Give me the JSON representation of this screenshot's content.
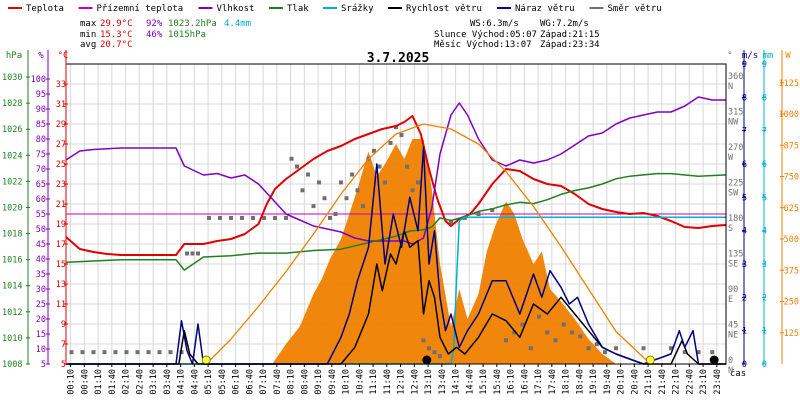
{
  "colors": {
    "temperature": "#e00000",
    "apparent_temperature": "#c000c0",
    "humidity": "#8000c0",
    "pressure": "#208020",
    "rain": "#00b0d0",
    "wind_speed": "#000000",
    "wind_gust": "#000080",
    "wind_direction": "#707070",
    "solar": "#f08000",
    "sun_curve": "#f08000",
    "grid": "#d8d8d8"
  },
  "legend": [
    {
      "label": "Teplota",
      "color": "#e00000"
    },
    {
      "label": "Přízemní teplota",
      "color": "#c000c0"
    },
    {
      "label": "Vlhkost",
      "color": "#8000c0"
    },
    {
      "label": "Tlak",
      "color": "#208020"
    },
    {
      "label": "Srážky",
      "color": "#00b0d0"
    },
    {
      "label": "Rychlost větru",
      "color": "#000000"
    },
    {
      "label": "Náraz větru",
      "color": "#000080"
    },
    {
      "label": "Směr větru",
      "color": "#707070"
    }
  ],
  "stats": {
    "max_label": "max",
    "max_temp": "29.9°C",
    "max_hum": "92%",
    "max_press": "1023.2hPa",
    "rain_total": "4.4mm",
    "min_label": "min",
    "min_temp": "15.3°C",
    "min_hum": "46%",
    "min_press": "1015hPa",
    "avg_label": "avg",
    "avg_temp": "20.7°C"
  },
  "wind_info": {
    "ws": "WS:6.3m/s",
    "wg": "WG:7.2m/s"
  },
  "sun_info": {
    "sunrise": "Slunce Východ:05:07",
    "sunset": "Západ:21:15"
  },
  "moon_info": {
    "moonrise": "Měsíc  Východ:13:07",
    "moonset": "Západ:23:34"
  },
  "chart_data": {
    "type": "line",
    "title": "3.7.2025",
    "xlabel": "čas",
    "x_ticks": [
      "00:10",
      "00:40",
      "01:10",
      "01:40",
      "02:10",
      "02:40",
      "03:10",
      "03:40",
      "04:10",
      "04:40",
      "05:10",
      "05:40",
      "06:10",
      "06:40",
      "07:10",
      "07:40",
      "08:10",
      "08:40",
      "09:10",
      "09:40",
      "10:10",
      "10:40",
      "11:10",
      "11:40",
      "12:10",
      "12:40",
      "13:10",
      "13:40",
      "14:10",
      "14:40",
      "15:10",
      "15:40",
      "16:10",
      "16:40",
      "17:10",
      "17:40",
      "18:10",
      "18:40",
      "19:10",
      "19:40",
      "20:10",
      "20:40",
      "21:10",
      "21:40",
      "22:10",
      "22:40",
      "23:10",
      "23:40"
    ],
    "axes": {
      "pressure": {
        "unit": "hPa",
        "ylim": [
          1008,
          1031
        ],
        "ticks": [
          "1030",
          "1028",
          "1026",
          "1024",
          "1022",
          "1020",
          "1018",
          "1016",
          "1014",
          "1012",
          "1010",
          "1008"
        ]
      },
      "humidity": {
        "unit": "%",
        "ylim": [
          5,
          105
        ],
        "ticks": [
          "100",
          "95",
          "90",
          "85",
          "80",
          "75",
          "70",
          "65",
          "60",
          "55",
          "50",
          "45",
          "40",
          "35",
          "30",
          "25",
          "20",
          "15",
          "10",
          "5"
        ]
      },
      "temperature": {
        "unit": "°C",
        "ylim": [
          5,
          35
        ],
        "ticks": [
          "33",
          "31",
          "29",
          "27",
          "25",
          "23",
          "21",
          "19",
          "17",
          "15",
          "13",
          "11",
          "9",
          "7",
          "5"
        ]
      },
      "wind_direction": {
        "unit": "°",
        "ylim": [
          0,
          380
        ],
        "ticks": [
          {
            "deg": "360",
            "dir": "N"
          },
          {
            "deg": "315",
            "dir": "NW"
          },
          {
            "deg": "270",
            "dir": "W"
          },
          {
            "deg": "225",
            "dir": "SW"
          },
          {
            "deg": "180",
            "dir": "S"
          },
          {
            "deg": "135",
            "dir": "SE"
          },
          {
            "deg": "90",
            "dir": "E"
          },
          {
            "deg": "45",
            "dir": "NE"
          },
          {
            "deg": "0",
            "dir": "N"
          }
        ]
      },
      "wind_speed": {
        "unit": "m/s",
        "ylim": [
          0,
          9
        ],
        "ticks": [
          "9",
          "8",
          "7",
          "6",
          "5",
          "4",
          "3",
          "2",
          "1",
          "0"
        ]
      },
      "rain": {
        "unit": "mm",
        "ylim": [
          0,
          9
        ],
        "ticks": [
          "9",
          "8",
          "7",
          "6",
          "5",
          "4",
          "3",
          "2",
          "1",
          "0"
        ]
      },
      "solar": {
        "unit": "W",
        "ylim": [
          0,
          1200
        ],
        "ticks": [
          "1125",
          "1000",
          "875",
          "750",
          "625",
          "500",
          "375",
          "250",
          "125"
        ]
      }
    },
    "reference_line": {
      "axis": "temperature",
      "value": 20,
      "color": "#c000c0"
    },
    "series": [
      {
        "name": "Teplota",
        "axis": "temperature",
        "color": "#e00000",
        "x": [
          0,
          0.5,
          1,
          1.5,
          2,
          3,
          4,
          4.3,
          5,
          5.5,
          6,
          6.5,
          7,
          7.3,
          7.6,
          8,
          8.5,
          9,
          9.5,
          10,
          10.5,
          11,
          11.5,
          12,
          12.3,
          12.6,
          12.9,
          13.2,
          13.5,
          13.8,
          14,
          14.3,
          14.7,
          15,
          15.5,
          16,
          16.5,
          17,
          17.5,
          18,
          18.5,
          19,
          19.5,
          20,
          20.5,
          21,
          21.5,
          22,
          22.5,
          23,
          23.5,
          24
        ],
        "values": [
          17.7,
          16.5,
          16.2,
          16.0,
          15.9,
          15.9,
          15.9,
          17.0,
          17.0,
          17.3,
          17.5,
          18.0,
          19.0,
          21.0,
          22.5,
          23.5,
          24.5,
          25.5,
          26.3,
          26.8,
          27.5,
          28.0,
          28.5,
          28.8,
          29.2,
          29.8,
          28.0,
          24.5,
          21.5,
          19.3,
          18.8,
          19.5,
          20.0,
          21.0,
          23.0,
          24.5,
          24.3,
          23.5,
          23.0,
          22.8,
          22.0,
          21.0,
          20.5,
          20.2,
          20.0,
          20.1,
          19.8,
          19.3,
          18.7,
          18.6,
          18.8,
          18.9
        ]
      },
      {
        "name": "Vlhkost",
        "axis": "humidity",
        "color": "#8000c0",
        "x": [
          0,
          0.5,
          1,
          2,
          3,
          4,
          4.3,
          5,
          5.5,
          6,
          6.5,
          7,
          7.5,
          8,
          8.5,
          9,
          9.5,
          10,
          10.5,
          11,
          11.5,
          12,
          12.3,
          12.6,
          13,
          13.3,
          13.6,
          14,
          14.3,
          14.6,
          15,
          15.5,
          16,
          16.5,
          17,
          17.5,
          18,
          18.5,
          19,
          19.5,
          20,
          20.5,
          21,
          21.5,
          22,
          22.5,
          23,
          23.5,
          24
        ],
        "values": [
          73,
          76,
          76.5,
          77,
          77,
          77,
          71,
          68,
          68.5,
          67,
          68,
          65,
          60,
          55,
          53,
          51,
          50,
          49,
          47,
          46,
          46,
          46,
          46,
          45,
          47,
          57,
          75,
          88,
          92,
          88,
          80,
          73,
          71,
          73,
          72,
          73,
          75,
          78,
          81,
          82,
          85,
          87,
          88,
          89,
          89,
          91,
          94,
          93,
          93
        ]
      },
      {
        "name": "Tlak",
        "axis": "pressure",
        "color": "#208020",
        "x": [
          0,
          1,
          2,
          3,
          4,
          4.3,
          5,
          6,
          7,
          8,
          9,
          10,
          11,
          12,
          12.5,
          13,
          13.3,
          13.6,
          14,
          14.5,
          15,
          15.5,
          16,
          16.5,
          17,
          17.5,
          18,
          18.5,
          19,
          19.5,
          20,
          20.5,
          21,
          21.5,
          22,
          23,
          24
        ],
        "values": [
          1015.8,
          1015.9,
          1016.0,
          1016.0,
          1016.0,
          1015.2,
          1016.2,
          1016.3,
          1016.5,
          1016.5,
          1016.7,
          1016.8,
          1017.3,
          1017.8,
          1018.2,
          1018.3,
          1018.5,
          1019.2,
          1019.0,
          1019.3,
          1019.7,
          1019.9,
          1020.2,
          1020.4,
          1020.3,
          1020.6,
          1021.0,
          1021.3,
          1021.5,
          1021.8,
          1022.2,
          1022.4,
          1022.5,
          1022.6,
          1022.6,
          1022.4,
          1022.5
        ]
      },
      {
        "name": "Srážky",
        "axis": "rain",
        "color": "#00b0d0",
        "x": [
          0,
          13.9,
          14.0,
          14.1,
          14.2,
          14.3,
          14.5,
          14.8,
          15,
          17,
          20,
          22,
          24
        ],
        "values": [
          0,
          0,
          0,
          0.5,
          2.5,
          4.3,
          4.4,
          4.4,
          4.4,
          4.4,
          4.4,
          4.4,
          4.4
        ]
      },
      {
        "name": "Rychlost větru",
        "axis": "wind_speed",
        "color": "#000000",
        "x": [
          0,
          4.1,
          4.3,
          4.5,
          4.8,
          5,
          8,
          10,
          10.5,
          11,
          11.3,
          11.5,
          11.8,
          12,
          12.3,
          12.5,
          12.8,
          13,
          13.2,
          13.4,
          13.6,
          13.9,
          14.2,
          14.5,
          15,
          15.5,
          16,
          16.5,
          17,
          17.5,
          18,
          18.5,
          19,
          19.5,
          20,
          21,
          22,
          22.4,
          22.6,
          23,
          24
        ],
        "values": [
          0,
          0,
          1.0,
          0.3,
          0,
          0,
          0,
          0,
          0.5,
          1.5,
          3.0,
          2.2,
          3.3,
          3.0,
          4.0,
          3.5,
          3.7,
          1.5,
          2.5,
          2.0,
          0.8,
          0.3,
          0.5,
          0.3,
          0.8,
          1.5,
          1.3,
          0.8,
          1.8,
          1.5,
          2.0,
          1.5,
          1.0,
          0.5,
          0.3,
          0,
          0,
          0.7,
          0.3,
          0,
          0
        ]
      },
      {
        "name": "Náraz větru",
        "axis": "wind_speed",
        "color": "#000080",
        "x": [
          0,
          4.0,
          4.2,
          4.4,
          4.6,
          4.8,
          5,
          8,
          9.5,
          10,
          10.3,
          10.6,
          11,
          11.3,
          11.6,
          11.9,
          12.2,
          12.5,
          12.8,
          13.0,
          13.2,
          13.4,
          13.6,
          13.8,
          14.0,
          14.3,
          14.6,
          15,
          15.5,
          16,
          16.5,
          17,
          17.3,
          17.6,
          18,
          18.3,
          18.6,
          19,
          19.5,
          20,
          21,
          22,
          22.3,
          22.5,
          22.8,
          23,
          24
        ],
        "values": [
          0,
          0,
          1.3,
          0.4,
          0,
          1.2,
          0,
          0,
          0,
          0.8,
          1.5,
          2.5,
          3.5,
          6.0,
          3.0,
          4.5,
          3.5,
          5.0,
          4.0,
          6.5,
          3.0,
          4.0,
          2.0,
          1.0,
          1.5,
          0.5,
          1.0,
          1.5,
          2.5,
          2.5,
          1.5,
          2.7,
          2.0,
          2.8,
          2.3,
          1.8,
          2.0,
          1.2,
          0.5,
          0.3,
          0,
          0.3,
          1.0,
          0.5,
          1.0,
          0,
          0
        ]
      },
      {
        "name": "Slunce",
        "axis": "solar",
        "color": "#f08000",
        "x": [
          5.1,
          6,
          7,
          8,
          9,
          10,
          11,
          12,
          13,
          14,
          15,
          16,
          17,
          18,
          19,
          20,
          21.25
        ],
        "values": [
          0,
          100,
          230,
          370,
          520,
          680,
          820,
          920,
          960,
          940,
          880,
          770,
          630,
          470,
          300,
          130,
          0
        ]
      }
    ],
    "solar_radiation": {
      "name": "Sluneční záření",
      "axis": "solar",
      "color": "#f08000",
      "x": [
        7.5,
        8,
        8.5,
        9,
        9.3,
        9.6,
        10,
        10.3,
        10.6,
        11,
        11.3,
        11.6,
        12,
        12.3,
        12.6,
        13,
        13.3,
        13.6,
        14,
        14.3,
        14.6,
        15,
        15.3,
        15.6,
        16,
        16.3,
        16.6,
        17,
        17.3,
        17.6,
        18,
        18.5,
        19,
        19.5,
        20
      ],
      "values": [
        0,
        80,
        150,
        280,
        340,
        420,
        500,
        600,
        700,
        850,
        750,
        800,
        880,
        820,
        900,
        900,
        700,
        400,
        150,
        300,
        180,
        280,
        450,
        550,
        650,
        600,
        500,
        400,
        450,
        300,
        250,
        180,
        100,
        40,
        0
      ]
    },
    "wind_direction_points": {
      "name": "Směr větru",
      "axis": "wind_direction",
      "color": "#707070",
      "x": [
        0.2,
        0.6,
        1.0,
        1.4,
        1.8,
        2.2,
        2.6,
        3.0,
        3.4,
        3.8,
        4.2,
        4.4,
        4.6,
        4.8,
        5.2,
        5.6,
        6.0,
        6.4,
        6.8,
        7.2,
        7.6,
        8.0,
        8.2,
        8.4,
        8.6,
        8.8,
        9.0,
        9.2,
        9.4,
        9.6,
        9.8,
        10.0,
        10.2,
        10.4,
        10.6,
        10.8,
        11.0,
        11.2,
        11.4,
        11.6,
        11.8,
        12.0,
        12.2,
        12.4,
        12.6,
        12.8,
        13.0,
        13.2,
        13.4,
        13.6,
        14.0,
        14.5,
        15.0,
        15.5,
        16.0,
        16.3,
        16.6,
        16.9,
        17.2,
        17.5,
        17.8,
        18.1,
        18.4,
        18.7,
        19.0,
        19.3,
        19.6,
        20.0,
        21.0,
        22.0,
        22.5,
        23.0,
        23.5
      ],
      "values": [
        15,
        15,
        15,
        15,
        15,
        15,
        15,
        15,
        15,
        15,
        15,
        140,
        140,
        140,
        185,
        185,
        185,
        185,
        185,
        185,
        185,
        185,
        260,
        250,
        220,
        240,
        200,
        230,
        210,
        185,
        190,
        230,
        210,
        240,
        220,
        200,
        260,
        270,
        250,
        230,
        280,
        300,
        290,
        250,
        220,
        230,
        30,
        20,
        15,
        10,
        180,
        185,
        190,
        195,
        30,
        40,
        50,
        20,
        60,
        40,
        30,
        50,
        40,
        35,
        20,
        25,
        15,
        20,
        20,
        20,
        15,
        15,
        15
      ]
    }
  }
}
